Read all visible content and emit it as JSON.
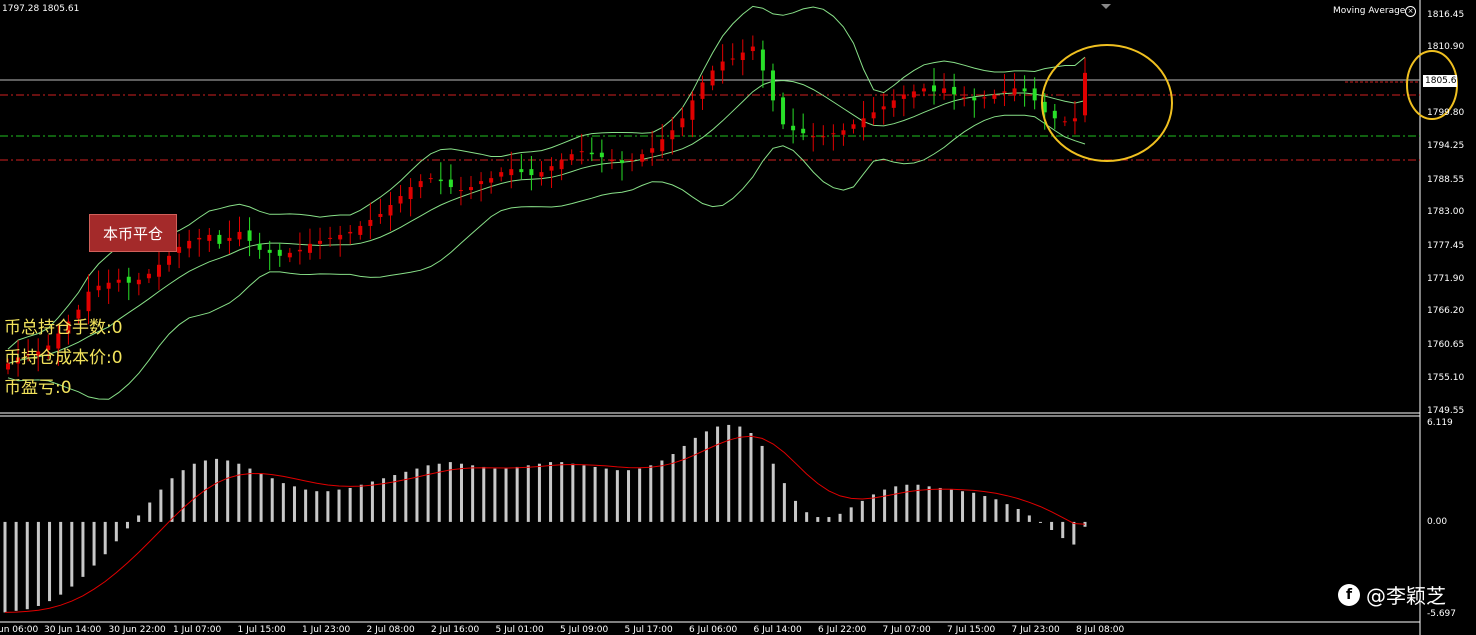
{
  "header": {
    "ohlc_text": "1797.28 1805.61",
    "indicator_name": "Moving Average"
  },
  "panel": {
    "close_button_label": "本币平仓",
    "total_lots": "币总持仓手数:0",
    "avg_cost": "币持仓成本价:0",
    "pnl": "币盈亏:0"
  },
  "price_axis": {
    "ticks": [
      "1816.45",
      "1810.90",
      "1799.80",
      "1794.25",
      "1788.55",
      "1783.00",
      "1777.45",
      "1771.90",
      "1766.20",
      "1760.65",
      "1755.10",
      "1749.55"
    ],
    "current_price": "1805.6"
  },
  "macd_axis": {
    "ticks": [
      "6.119",
      "0.00",
      "-5.697"
    ]
  },
  "time_axis": {
    "ticks": [
      "un 06:00",
      "30 Jun 14:00",
      "30 Jun 22:00",
      "1 Jul 07:00",
      "1 Jul 15:00",
      "1 Jul 23:00",
      "2 Jul 08:00",
      "2 Jul 16:00",
      "5 Jul 01:00",
      "5 Jul 09:00",
      "5 Jul 17:00",
      "6 Jul 06:00",
      "6 Jul 14:00",
      "6 Jul 22:00",
      "7 Jul 07:00",
      "7 Jul 15:00",
      "7 Jul 23:00",
      "8 Jul 08:00"
    ]
  },
  "watermark": {
    "logo": "f",
    "text": "@李颖芝"
  },
  "colors": {
    "bull": "#e00000",
    "bear": "#28e028",
    "band": "#88e088",
    "macd_hist": "#c8c8c8",
    "signal": "#e00000",
    "highlight": "#f0c020"
  },
  "chart_data": {
    "type": "candlestick",
    "symbol_prices": {
      "last_open": 1797.28,
      "last_close": 1805.61
    },
    "ylim": [
      1749.55,
      1816.45
    ],
    "closes": [
      1757,
      1758,
      1758.5,
      1759,
      1760,
      1762,
      1764,
      1766,
      1769,
      1770,
      1770.5,
      1771,
      1770.5,
      1771,
      1772,
      1773.5,
      1775,
      1776.5,
      1777.5,
      1778,
      1778.5,
      1777,
      1778,
      1779,
      1777.5,
      1776,
      1775.5,
      1775,
      1775.5,
      1776,
      1777,
      1777.5,
      1778,
      1778.5,
      1779,
      1780,
      1781,
      1782,
      1783.5,
      1785,
      1786.5,
      1787.5,
      1788,
      1787.5,
      1786.5,
      1786,
      1786.5,
      1787.5,
      1788,
      1789,
      1789.5,
      1789,
      1788.5,
      1789,
      1790,
      1791,
      1792,
      1792.5,
      1792,
      1791.5,
      1791,
      1790.5,
      1791,
      1792,
      1793,
      1794.5,
      1796,
      1798,
      1801,
      1804,
      1806,
      1807.5,
      1808,
      1809,
      1810,
      1806,
      1801,
      1797,
      1796,
      1795.5,
      1795,
      1795,
      1795.5,
      1796,
      1797,
      1798,
      1799,
      1800,
      1801,
      1802,
      1802.5,
      1803,
      1802.5,
      1803,
      1802,
      1801.5,
      1801,
      1801.5,
      1802,
      1802.5,
      1803,
      1802.5,
      1801,
      1799,
      1798,
      1797.5,
      1798,
      1805.6
    ],
    "macd_histogram": [
      -5.6,
      -5.5,
      -5.4,
      -5.2,
      -4.9,
      -4.5,
      -4.0,
      -3.4,
      -2.7,
      -2.0,
      -1.2,
      -0.4,
      0.4,
      1.2,
      2.0,
      2.7,
      3.2,
      3.6,
      3.8,
      3.9,
      3.8,
      3.6,
      3.3,
      3.0,
      2.7,
      2.4,
      2.2,
      2.0,
      1.9,
      1.9,
      2.0,
      2.1,
      2.3,
      2.5,
      2.7,
      2.9,
      3.1,
      3.3,
      3.5,
      3.6,
      3.7,
      3.6,
      3.5,
      3.4,
      3.3,
      3.3,
      3.4,
      3.5,
      3.6,
      3.7,
      3.7,
      3.6,
      3.5,
      3.4,
      3.3,
      3.2,
      3.2,
      3.3,
      3.5,
      3.8,
      4.2,
      4.7,
      5.2,
      5.6,
      5.9,
      6.0,
      5.9,
      5.5,
      4.7,
      3.6,
      2.4,
      1.3,
      0.6,
      0.3,
      0.3,
      0.5,
      0.9,
      1.3,
      1.7,
      2.0,
      2.2,
      2.3,
      2.3,
      2.2,
      2.1,
      2.0,
      1.9,
      1.8,
      1.6,
      1.4,
      1.1,
      0.8,
      0.4,
      0.0,
      -0.5,
      -1.0,
      -1.4,
      -0.3
    ],
    "macd_ylim": [
      -5.697,
      6.119
    ]
  }
}
